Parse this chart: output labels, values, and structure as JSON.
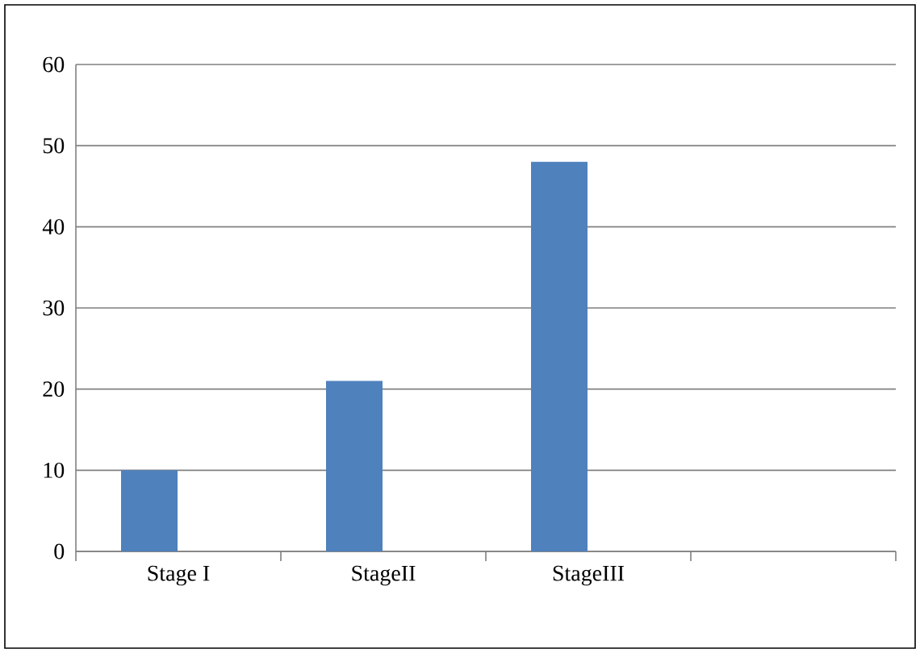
{
  "chart_data": {
    "type": "bar",
    "categories": [
      "Stage I",
      "StageII",
      "StageIII",
      null
    ],
    "values": [
      10,
      21,
      48,
      null
    ],
    "color": "#4f81bd",
    "ylim": [
      0,
      60
    ],
    "yticks": [
      0,
      10,
      20,
      30,
      40,
      50,
      60
    ],
    "grid": "y"
  }
}
